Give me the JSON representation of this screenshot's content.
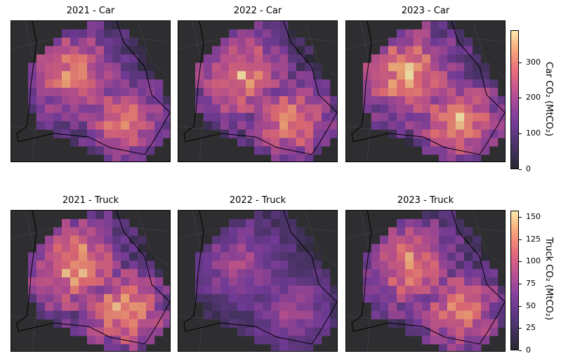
{
  "chart_data": {
    "type": "heatmap",
    "colormap": "magma",
    "grid": false,
    "panels": [
      {
        "title": "2021 - Car",
        "row": 0,
        "col": 0,
        "intensity": 0.82
      },
      {
        "title": "2022 - Car",
        "row": 0,
        "col": 1,
        "intensity": 0.85
      },
      {
        "title": "2023 - Car",
        "row": 0,
        "col": 2,
        "intensity": 0.92
      },
      {
        "title": "2021 - Truck",
        "row": 1,
        "col": 0,
        "intensity": 0.92
      },
      {
        "title": "2022 - Truck",
        "row": 1,
        "col": 1,
        "intensity": 0.55
      },
      {
        "title": "2023 - Truck",
        "row": 1,
        "col": 2,
        "intensity": 0.84
      }
    ],
    "colorbars": [
      {
        "label": "Car CO₂ (MtCO₂)",
        "range": [
          0,
          390
        ],
        "ticks": [
          "0",
          "100",
          "200",
          "300"
        ],
        "tick_values": [
          0,
          100,
          200,
          300
        ]
      },
      {
        "label": "Truck CO₂ (MtCO₂)",
        "range": [
          0,
          157
        ],
        "ticks": [
          "0",
          "25",
          "50",
          "75",
          "100",
          "125",
          "150"
        ],
        "tick_values": [
          0,
          25,
          50,
          75,
          100,
          125,
          150
        ]
      }
    ]
  },
  "titles": {
    "p0": "2021 - Car",
    "p1": "2022 - Car",
    "p2": "2023 - Car",
    "p3": "2021 - Truck",
    "p4": "2022 - Truck",
    "p5": "2023 - Truck"
  },
  "colorbar_labels": {
    "car": "Car CO₂ (MtCO₂)",
    "truck": "Truck CO₂ (MtCO₂)"
  }
}
